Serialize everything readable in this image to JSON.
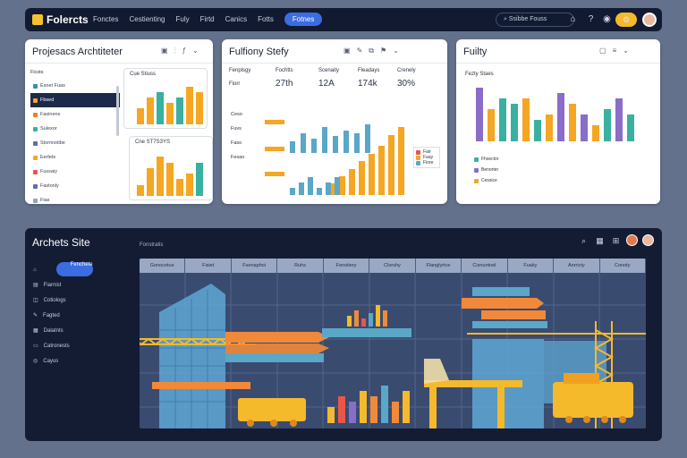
{
  "topbar": {
    "brand": "Folercts",
    "nav": [
      "Fonctes",
      "Cestienting",
      "Fuly",
      "Firtd",
      "Canics",
      "Fotts",
      "Fotnes"
    ],
    "search": "Ssibbe Fouss"
  },
  "card1": {
    "title": "Projesacs Archtiteter",
    "tree_header": "Ficsts",
    "tree": [
      "Exnet Fuas",
      "Fbsed",
      "Fasinens",
      "Sulexor",
      "Stomnotibe",
      "Eerlets",
      "Fussaiy",
      "Fastonly",
      "Fias"
    ],
    "mini1_label": "Cue Stiuss",
    "mini2_label": "Cne ST7S3YS",
    "mini1_values": [
      3,
      5,
      6,
      4,
      5,
      7,
      6
    ],
    "mini2_values": [
      2,
      5,
      7,
      6,
      3,
      4,
      6
    ]
  },
  "card2": {
    "title": "Fulfiony Stefy",
    "headers": [
      "Fenplsgy",
      "Fochtts",
      "Scenaity",
      "Fleadays",
      "Crenely"
    ],
    "big": [
      "Fiorr",
      "27th",
      "12A",
      "174k",
      "30%"
    ],
    "rows": [
      "Ceso",
      "Fuvs",
      "Faso",
      "Fesao"
    ],
    "legend": [
      "Fatr",
      "Faay",
      "Fiore"
    ],
    "teal": [
      4,
      7,
      5,
      9,
      6,
      8,
      7,
      10
    ],
    "orange": [
      3,
      5,
      7,
      9,
      11,
      13,
      16,
      18
    ]
  },
  "card3": {
    "title": "Fuilty",
    "sub": "Fezty Staes",
    "legend": [
      "Fhsector",
      "Benorter",
      "Cessice"
    ],
    "values": [
      10,
      6,
      8,
      7,
      8,
      4,
      5,
      9,
      7,
      5,
      3,
      6,
      8,
      5
    ]
  },
  "site": {
    "title": "Archets Site",
    "sub": "Fonstratis",
    "sidebar": [
      "Fenchete",
      "Fiarnist",
      "Cotiologs",
      "Fagted",
      "Dalatnts",
      "Catronests",
      "Cayus"
    ],
    "columns": [
      "Gonocetue",
      "Fisiet",
      "Fsenaphoi",
      "Ruhs",
      "Fenstiery",
      "Clorshy",
      "Flanglyrtce",
      "Cisnuntnel",
      "Fuaky",
      "Anrricty",
      "Conoty"
    ],
    "bars": [
      4,
      6,
      3,
      5,
      8,
      6
    ],
    "bars2": [
      3,
      5,
      4,
      6,
      5,
      7,
      4,
      6
    ]
  }
}
